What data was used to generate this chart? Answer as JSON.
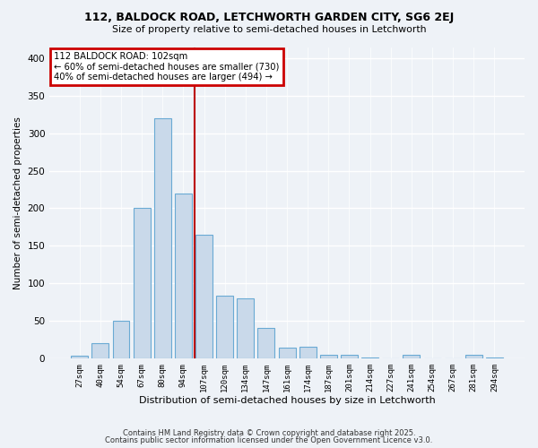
{
  "title1": "112, BALDOCK ROAD, LETCHWORTH GARDEN CITY, SG6 2EJ",
  "title2": "Size of property relative to semi-detached houses in Letchworth",
  "xlabel": "Distribution of semi-detached houses by size in Letchworth",
  "ylabel": "Number of semi-detached properties",
  "categories": [
    "27sqm",
    "40sqm",
    "54sqm",
    "67sqm",
    "80sqm",
    "94sqm",
    "107sqm",
    "120sqm",
    "134sqm",
    "147sqm",
    "161sqm",
    "174sqm",
    "187sqm",
    "201sqm",
    "214sqm",
    "227sqm",
    "241sqm",
    "254sqm",
    "267sqm",
    "281sqm",
    "294sqm"
  ],
  "values": [
    3,
    20,
    50,
    200,
    320,
    220,
    165,
    83,
    80,
    40,
    14,
    15,
    5,
    4,
    1,
    0,
    4,
    0,
    0,
    4,
    1
  ],
  "bar_color": "#c9d9ea",
  "bar_edge_color": "#6aaad4",
  "red_line_x": 5.54,
  "annotation_text": "112 BALDOCK ROAD: 102sqm\n← 60% of semi-detached houses are smaller (730)\n40% of semi-detached houses are larger (494) →",
  "annotation_box_color": "#ffffff",
  "annotation_box_edge": "#cc0000",
  "background_color": "#eef2f7",
  "grid_color": "#ffffff",
  "footer1": "Contains HM Land Registry data © Crown copyright and database right 2025.",
  "footer2": "Contains public sector information licensed under the Open Government Licence v3.0.",
  "ylim": [
    0,
    415
  ],
  "bar_width": 0.82
}
